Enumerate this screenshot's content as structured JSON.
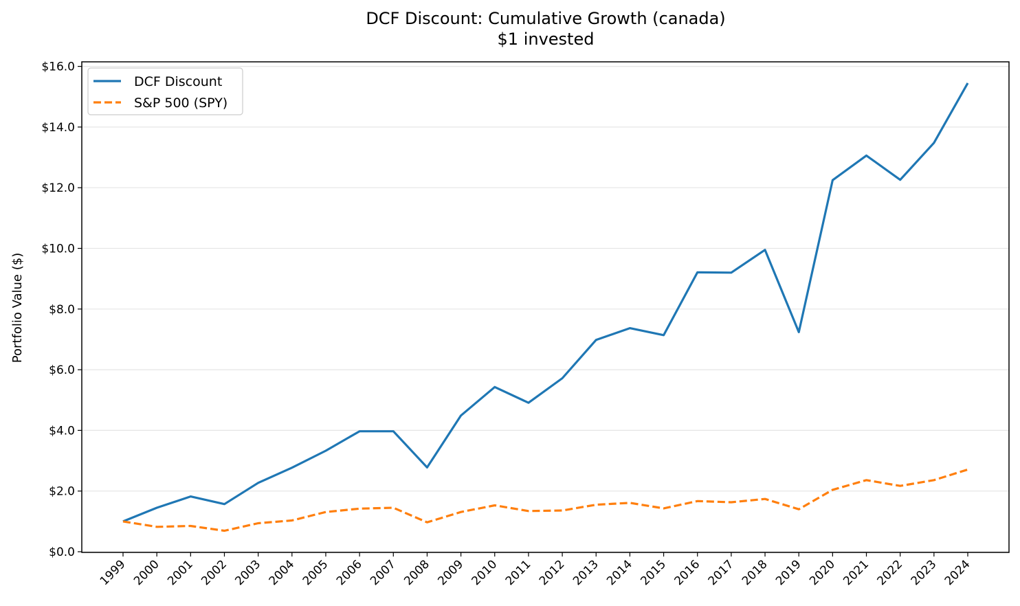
{
  "chart_data": {
    "type": "line",
    "title": "DCF Discount: Cumulative Growth (canada)",
    "subtitle": "$1 invested",
    "xlabel": "",
    "ylabel": "Portfolio Value ($)",
    "x": [
      "1999",
      "2000",
      "2001",
      "2002",
      "2003",
      "2004",
      "2005",
      "2006",
      "2007",
      "2008",
      "2009",
      "2010",
      "2011",
      "2012",
      "2013",
      "2014",
      "2015",
      "2016",
      "2017",
      "2018",
      "2019",
      "2020",
      "2021",
      "2022",
      "2023",
      "2024"
    ],
    "ylim": [
      0,
      16.2
    ],
    "yticks": [
      "$0.0",
      "$2.0",
      "$4.0",
      "$6.0",
      "$8.0",
      "$10.0",
      "$12.0",
      "$14.0",
      "$16.0"
    ],
    "grid": "horizontal",
    "legend_position": "top-left",
    "series": [
      {
        "name": "DCF Discount",
        "color": "#1f77b4",
        "style": "solid",
        "values": [
          1.0,
          1.45,
          1.82,
          1.57,
          2.27,
          2.77,
          3.33,
          3.97,
          3.97,
          2.78,
          4.49,
          5.43,
          4.91,
          5.72,
          6.98,
          7.37,
          7.14,
          9.21,
          9.2,
          9.95,
          7.24,
          12.25,
          13.06,
          12.26,
          13.48,
          15.45
        ]
      },
      {
        "name": "S&P 500 (SPY)",
        "color": "#ff7f0e",
        "style": "dashed",
        "values": [
          1.0,
          0.82,
          0.85,
          0.69,
          0.94,
          1.03,
          1.31,
          1.42,
          1.45,
          0.97,
          1.31,
          1.53,
          1.34,
          1.36,
          1.55,
          1.61,
          1.43,
          1.67,
          1.63,
          1.74,
          1.4,
          2.04,
          2.36,
          2.17,
          2.36,
          2.71
        ]
      }
    ]
  }
}
